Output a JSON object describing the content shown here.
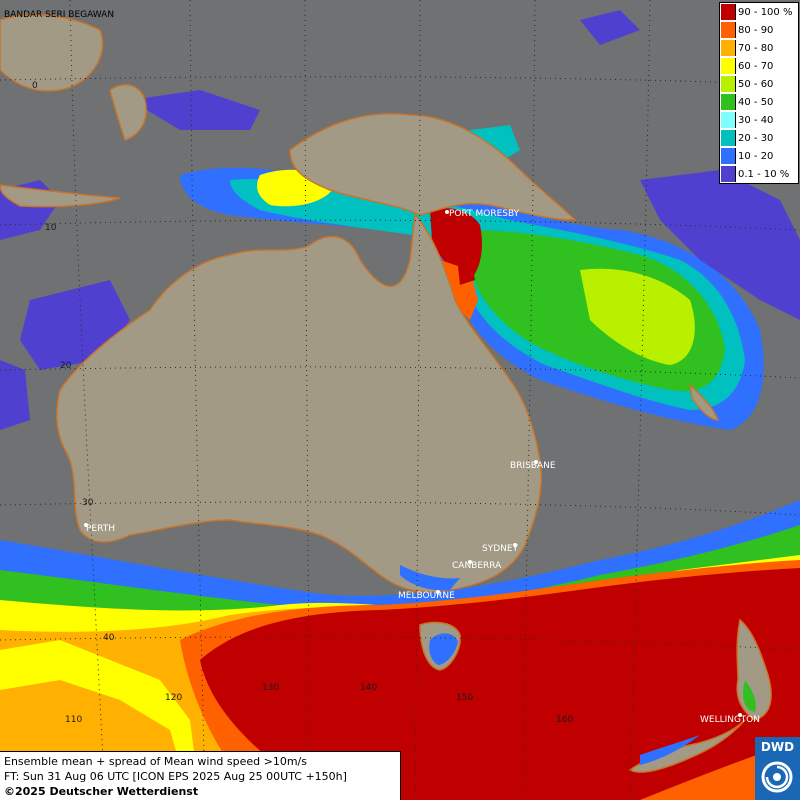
{
  "map": {
    "cities": [
      "BANDAR SERI BEGAWAN",
      "PORT MORESBY",
      "BRISBANE",
      "SYDNEY",
      "CANBERRA",
      "MELBOURNE",
      "PERTH",
      "WELLINGTON"
    ],
    "lat_labels": [
      "0",
      "10",
      "20",
      "30",
      "40"
    ],
    "lon_labels": [
      "110",
      "120",
      "130",
      "140",
      "150",
      "160"
    ]
  },
  "legend": {
    "title_hint": "",
    "items": [
      {
        "label": "90 - 100 %",
        "color": "#c00000"
      },
      {
        "label": "80 - 90",
        "color": "#ff6000"
      },
      {
        "label": "70 - 80",
        "color": "#ffb000"
      },
      {
        "label": "60 - 70",
        "color": "#ffff00"
      },
      {
        "label": "50 - 60",
        "color": "#b8f000"
      },
      {
        "label": "40 - 50",
        "color": "#30c020"
      },
      {
        "label": "30 - 40",
        "color": "#80ffff"
      },
      {
        "label": "20 - 30",
        "color": "#00c0c0"
      },
      {
        "label": "10 - 20",
        "color": "#3070ff"
      },
      {
        "label": "0.1 - 10 %",
        "color": "#5040d0"
      }
    ]
  },
  "info": {
    "line1": "Ensemble mean + spread of Mean wind speed >10m/s",
    "line2": "FT: Sun 31 Aug 06 UTC [ICON EPS 2025 Aug 25 00UTC +150h]",
    "line3": "©2025 Deutscher Wetterdienst"
  },
  "logo": {
    "text": "DWD",
    "icon": "dwd-swirl-icon"
  },
  "colors": {
    "sea": "#6f7172",
    "land": "#a39a86",
    "coast": "#c8742a",
    "grid": "#2a2a2a"
  }
}
